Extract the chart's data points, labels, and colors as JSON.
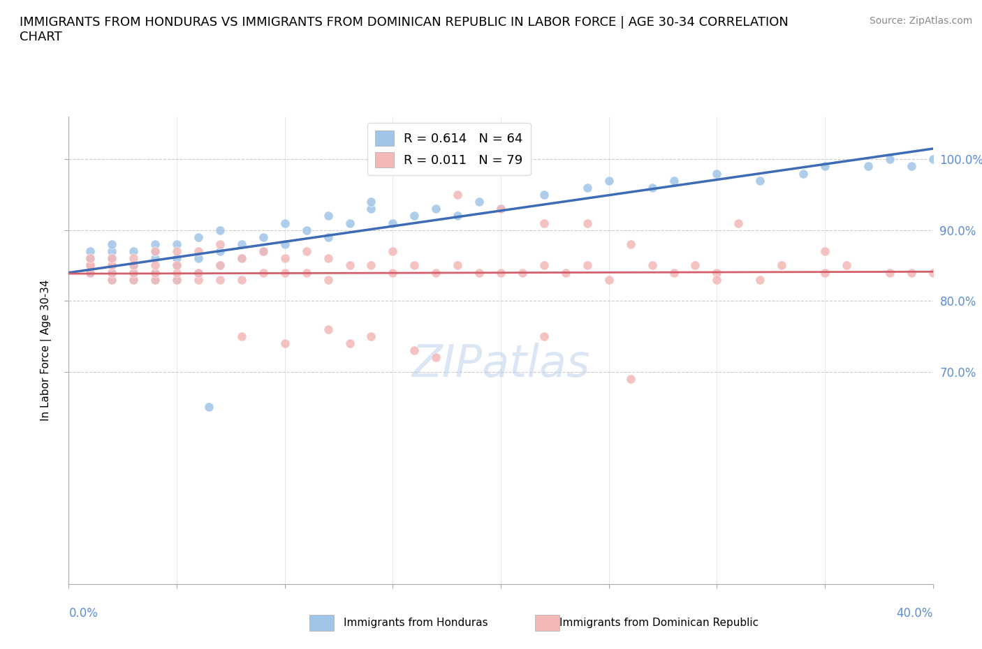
{
  "title": "IMMIGRANTS FROM HONDURAS VS IMMIGRANTS FROM DOMINICAN REPUBLIC IN LABOR FORCE | AGE 30-34 CORRELATION\nCHART",
  "source_text": "Source: ZipAtlas.com",
  "ylabel": "In Labor Force | Age 30-34",
  "xlim": [
    0.0,
    0.4
  ],
  "ylim": [
    0.4,
    1.06
  ],
  "ytick_labels": [
    "100.0%",
    "90.0%",
    "80.0%",
    "70.0%"
  ],
  "ytick_values": [
    1.0,
    0.9,
    0.8,
    0.7
  ],
  "honduras_color": "#9fc5e8",
  "dominican_color": "#f4b8b8",
  "honduras_line_color": "#3d6bb5",
  "dominican_line_color": "#d45f6a",
  "R_honduras": 0.614,
  "N_honduras": 64,
  "R_dominican": 0.011,
  "N_dominican": 79,
  "legend_label_honduras": "R = 0.614   N = 64",
  "legend_label_dominican": "R = 0.011   N = 79",
  "legend_bottom_honduras": "Immigrants from Honduras",
  "legend_bottom_dominican": "Immigrants from Dominican Republic",
  "watermark": "ZIPatlas",
  "title_fontsize": 13,
  "tick_fontsize": 12,
  "honduras_x": [
    0.01,
    0.01,
    0.01,
    0.01,
    0.01,
    0.01,
    0.01,
    0.02,
    0.02,
    0.02,
    0.02,
    0.02,
    0.02,
    0.03,
    0.03,
    0.03,
    0.03,
    0.04,
    0.04,
    0.04,
    0.04,
    0.04,
    0.05,
    0.05,
    0.05,
    0.05,
    0.06,
    0.06,
    0.06,
    0.07,
    0.07,
    0.07,
    0.08,
    0.08,
    0.09,
    0.09,
    0.1,
    0.1,
    0.11,
    0.12,
    0.12,
    0.13,
    0.14,
    0.15,
    0.16,
    0.17,
    0.18,
    0.19,
    0.2,
    0.22,
    0.24,
    0.25,
    0.27,
    0.28,
    0.3,
    0.32,
    0.34,
    0.35,
    0.37,
    0.38,
    0.39,
    0.4,
    0.14,
    0.065
  ],
  "honduras_y": [
    0.84,
    0.84,
    0.85,
    0.85,
    0.86,
    0.86,
    0.87,
    0.83,
    0.84,
    0.85,
    0.86,
    0.87,
    0.88,
    0.83,
    0.84,
    0.85,
    0.87,
    0.83,
    0.84,
    0.86,
    0.87,
    0.88,
    0.83,
    0.85,
    0.86,
    0.88,
    0.84,
    0.86,
    0.89,
    0.85,
    0.87,
    0.9,
    0.86,
    0.88,
    0.87,
    0.89,
    0.88,
    0.91,
    0.9,
    0.89,
    0.92,
    0.91,
    0.93,
    0.91,
    0.92,
    0.93,
    0.92,
    0.94,
    0.93,
    0.95,
    0.96,
    0.97,
    0.96,
    0.97,
    0.98,
    0.97,
    0.98,
    0.99,
    0.99,
    1.0,
    0.99,
    1.0,
    0.94,
    0.65
  ],
  "dominican_x": [
    0.01,
    0.01,
    0.01,
    0.01,
    0.02,
    0.02,
    0.02,
    0.02,
    0.02,
    0.03,
    0.03,
    0.03,
    0.03,
    0.04,
    0.04,
    0.04,
    0.04,
    0.05,
    0.05,
    0.05,
    0.05,
    0.06,
    0.06,
    0.06,
    0.07,
    0.07,
    0.07,
    0.08,
    0.08,
    0.09,
    0.09,
    0.1,
    0.1,
    0.11,
    0.11,
    0.12,
    0.12,
    0.13,
    0.14,
    0.15,
    0.15,
    0.16,
    0.17,
    0.18,
    0.19,
    0.2,
    0.21,
    0.22,
    0.23,
    0.24,
    0.25,
    0.27,
    0.28,
    0.29,
    0.3,
    0.32,
    0.33,
    0.35,
    0.36,
    0.38,
    0.39,
    0.4,
    0.22,
    0.26,
    0.31,
    0.35,
    0.18,
    0.2,
    0.24,
    0.3,
    0.12,
    0.14,
    0.16,
    0.08,
    0.1,
    0.13,
    0.17,
    0.22,
    0.26
  ],
  "dominican_y": [
    0.84,
    0.85,
    0.85,
    0.86,
    0.83,
    0.84,
    0.85,
    0.85,
    0.86,
    0.83,
    0.84,
    0.85,
    0.86,
    0.83,
    0.84,
    0.85,
    0.87,
    0.83,
    0.84,
    0.85,
    0.87,
    0.83,
    0.84,
    0.87,
    0.83,
    0.85,
    0.88,
    0.83,
    0.86,
    0.84,
    0.87,
    0.84,
    0.86,
    0.84,
    0.87,
    0.83,
    0.86,
    0.85,
    0.85,
    0.84,
    0.87,
    0.85,
    0.84,
    0.85,
    0.84,
    0.84,
    0.84,
    0.85,
    0.84,
    0.85,
    0.83,
    0.85,
    0.84,
    0.85,
    0.84,
    0.83,
    0.85,
    0.84,
    0.85,
    0.84,
    0.84,
    0.84,
    0.91,
    0.88,
    0.91,
    0.87,
    0.95,
    0.93,
    0.91,
    0.83,
    0.76,
    0.75,
    0.73,
    0.75,
    0.74,
    0.74,
    0.72,
    0.75,
    0.69
  ]
}
